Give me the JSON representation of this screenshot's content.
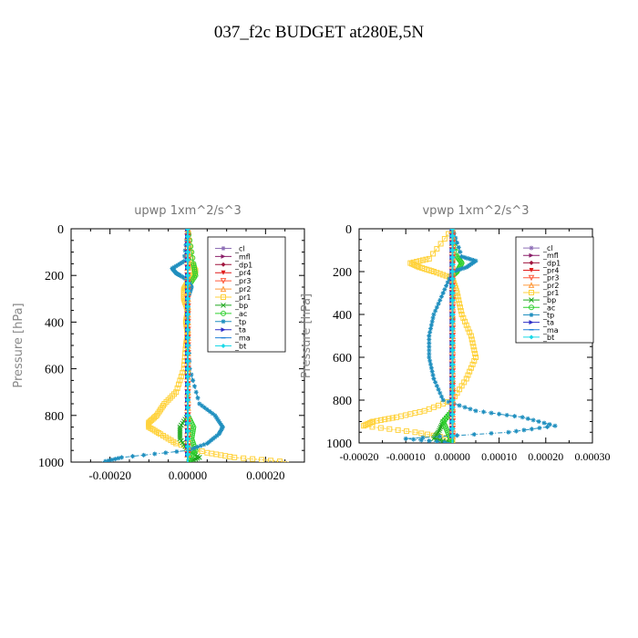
{
  "figure_title": "037_f2c  BUDGET at280E,5N",
  "legend_items": [
    {
      "label": "_cl",
      "color": "#8e6fb6",
      "marker": "star"
    },
    {
      "label": "_mfl",
      "color": "#8b1f6a",
      "marker": "tri-right"
    },
    {
      "label": "_dp1",
      "color": "#a0153e",
      "marker": "diamond"
    },
    {
      "label": "_pr4",
      "color": "#e01b1b",
      "marker": "tri-down"
    },
    {
      "label": "_pr3",
      "color": "#ff5a3c",
      "marker": "tri-down-open"
    },
    {
      "label": "_pr2",
      "color": "#ff9a3c",
      "marker": "tri-open"
    },
    {
      "label": "_pr1",
      "color": "#ffd23c",
      "marker": "square-open"
    },
    {
      "label": "_bp",
      "color": "#1fa81f",
      "marker": "x"
    },
    {
      "label": "_ac",
      "color": "#2fd12f",
      "marker": "circle-open"
    },
    {
      "label": "_tp",
      "color": "#1f8fbf",
      "marker": "star"
    },
    {
      "label": "_ta",
      "color": "#2f2fc8",
      "marker": "tri-right"
    },
    {
      "label": "_ma",
      "color": "#1f7fd8",
      "marker": "dash"
    },
    {
      "label": "_bt",
      "color": "#19d9e8",
      "marker": "diamond"
    }
  ],
  "chart_data": [
    {
      "type": "line",
      "title": "upwp   1xm^2/s^3",
      "xlabel": "",
      "ylabel": "Pressure [hPa]",
      "xlim": [
        -0.0003,
        0.0003
      ],
      "ylim": [
        0,
        1000
      ],
      "y_inverted": true,
      "xticks": [
        -0.0002,
        0.0,
        0.0002
      ],
      "xtick_labels": [
        "-0.00020",
        "0.00000",
        "0.00020"
      ],
      "yticks": [
        0,
        200,
        400,
        600,
        800,
        1000
      ],
      "ytick_labels": [
        "0",
        "200",
        "400",
        "600",
        "800",
        "1000"
      ],
      "legend_position": "top-right",
      "series": [
        {
          "name": "_cl",
          "y": [
            0,
            200,
            400,
            600,
            800,
            1000
          ],
          "x": [
            0,
            0,
            0,
            0,
            0,
            0
          ]
        },
        {
          "name": "_mfl",
          "y": [
            0,
            200,
            400,
            600,
            800,
            1000
          ],
          "x": [
            0,
            0,
            0,
            0,
            0,
            0
          ]
        },
        {
          "name": "_dp1",
          "y": [
            0,
            200,
            400,
            600,
            800,
            1000
          ],
          "x": [
            0,
            0,
            0,
            0,
            0,
            0
          ]
        },
        {
          "name": "_pr4",
          "y": [
            0,
            200,
            400,
            600,
            800,
            1000
          ],
          "x": [
            0,
            0,
            0,
            0,
            0,
            0
          ]
        },
        {
          "name": "_pr3",
          "y": [
            0,
            200,
            400,
            600,
            800,
            1000
          ],
          "x": [
            0,
            0,
            0,
            0,
            0,
            0
          ]
        },
        {
          "name": "_pr2",
          "y": [
            0,
            200,
            400,
            600,
            800,
            1000
          ],
          "x": [
            0,
            0,
            0,
            0,
            0,
            0
          ]
        },
        {
          "name": "_pr1",
          "y": [
            0,
            150,
            180,
            200,
            230,
            260,
            300,
            350,
            400,
            450,
            500,
            600,
            700,
            750,
            800,
            830,
            850,
            880,
            920,
            960,
            980,
            1000
          ],
          "x": [
            0,
            1e-05,
            2e-05,
            1.5e-05,
            0,
            -1e-05,
            -1e-05,
            0,
            -5e-06,
            0,
            -5e-06,
            -1e-05,
            -3e-05,
            -6e-05,
            -8e-05,
            -0.0001,
            -0.0001,
            -7e-05,
            -3e-05,
            5e-05,
            0.00012,
            0.00026
          ]
        },
        {
          "name": "_bp",
          "y": [
            0,
            800,
            850,
            900,
            950,
            980,
            1000
          ],
          "x": [
            0,
            0,
            -2e-05,
            -2e-05,
            0,
            3e-05,
            0
          ]
        },
        {
          "name": "_ac",
          "y": [
            0,
            150,
            200,
            250,
            800,
            850,
            900,
            950,
            1000
          ],
          "x": [
            0,
            1.5e-05,
            2e-05,
            0,
            0,
            1.5e-05,
            1e-05,
            2e-05,
            0
          ]
        },
        {
          "name": "_tp",
          "y": [
            0,
            140,
            170,
            190,
            200,
            220,
            250,
            300,
            400,
            600,
            750,
            800,
            850,
            880,
            920,
            950,
            980,
            1000
          ],
          "x": [
            0,
            -1e-05,
            -4e-05,
            -3e-05,
            -2e-05,
            0,
            1e-05,
            0,
            0,
            5e-06,
            3e-05,
            7e-05,
            9e-05,
            8e-05,
            5e-05,
            0,
            -0.00017,
            -0.00022
          ]
        },
        {
          "name": "_ta",
          "y": [
            0,
            200,
            400,
            600,
            800,
            1000
          ],
          "x": [
            0,
            0,
            0,
            0,
            0,
            0
          ]
        },
        {
          "name": "_ma",
          "y": [
            0,
            200,
            400,
            600,
            800,
            1000
          ],
          "x": [
            0,
            0,
            0,
            0,
            0,
            0
          ]
        },
        {
          "name": "_bt",
          "y": [
            0,
            200,
            400,
            600,
            800,
            1000
          ],
          "x": [
            0,
            0,
            0,
            0,
            0,
            0
          ]
        }
      ]
    },
    {
      "type": "line",
      "title": "vpwp   1xm^2/s^3",
      "xlabel": "",
      "ylabel": "Pressure [hPa]",
      "xlim": [
        -0.0002,
        0.0003
      ],
      "ylim": [
        0,
        1000
      ],
      "y_inverted": true,
      "xticks": [
        -0.0002,
        -0.0001,
        0.0,
        0.0001,
        0.0002,
        0.0003
      ],
      "xtick_labels": [
        "-0.00020",
        "-0.00010",
        "0.00000",
        "0.00010",
        "0.00020",
        "0.00030"
      ],
      "yticks": [
        0,
        200,
        400,
        600,
        800,
        1000
      ],
      "ytick_labels": [
        "0",
        "200",
        "400",
        "600",
        "800",
        "1000"
      ],
      "legend_position": "top-right",
      "series": [
        {
          "name": "_cl",
          "y": [
            0,
            200,
            400,
            600,
            800,
            1000
          ],
          "x": [
            0,
            0,
            0,
            0,
            0,
            0
          ]
        },
        {
          "name": "_mfl",
          "y": [
            0,
            200,
            400,
            600,
            800,
            1000
          ],
          "x": [
            0,
            0,
            0,
            0,
            0,
            0
          ]
        },
        {
          "name": "_dp1",
          "y": [
            0,
            200,
            400,
            600,
            800,
            1000
          ],
          "x": [
            0,
            0,
            0,
            0,
            0,
            0
          ]
        },
        {
          "name": "_pr4",
          "y": [
            0,
            200,
            400,
            600,
            800,
            1000
          ],
          "x": [
            0,
            0,
            0,
            0,
            0,
            0
          ]
        },
        {
          "name": "_pr3",
          "y": [
            0,
            200,
            400,
            600,
            800,
            1000
          ],
          "x": [
            0,
            0,
            0,
            0,
            0,
            0
          ]
        },
        {
          "name": "_pr2",
          "y": [
            0,
            200,
            400,
            600,
            800,
            1000
          ],
          "x": [
            0,
            0,
            0,
            0,
            0,
            0
          ]
        },
        {
          "name": "_pr1",
          "y": [
            0,
            140,
            160,
            180,
            200,
            230,
            300,
            400,
            500,
            600,
            700,
            800,
            850,
            880,
            900,
            920,
            950,
            980,
            1000
          ],
          "x": [
            0,
            -5e-05,
            -9e-05,
            -7e-05,
            -4e-05,
            0,
            1e-05,
            2e-05,
            4e-05,
            5e-05,
            3e-05,
            0,
            -6e-05,
            -0.00012,
            -0.00017,
            -0.00019,
            -8e-05,
            0,
            0
          ]
        },
        {
          "name": "_bp",
          "y": [
            0,
            850,
            900,
            950,
            980,
            1000
          ],
          "x": [
            0,
            0,
            -2e-05,
            -3e-05,
            -4e-05,
            0
          ]
        },
        {
          "name": "_ac",
          "y": [
            0,
            130,
            160,
            200,
            220,
            850,
            900,
            950,
            1000
          ],
          "x": [
            0,
            1e-05,
            2e-05,
            1e-05,
            0,
            0,
            -2e-05,
            -1e-05,
            0
          ]
        },
        {
          "name": "_tp",
          "y": [
            0,
            130,
            150,
            180,
            200,
            300,
            400,
            500,
            600,
            700,
            800,
            850,
            880,
            920,
            950,
            980,
            1000
          ],
          "x": [
            0,
            2e-05,
            5e-05,
            3e-05,
            0,
            -2e-05,
            -4e-05,
            -5e-05,
            -5e-05,
            -4e-05,
            -2e-05,
            5e-05,
            0.00015,
            0.00022,
            0.00012,
            -0.0001,
            0
          ]
        },
        {
          "name": "_ta",
          "y": [
            0,
            200,
            400,
            600,
            800,
            1000
          ],
          "x": [
            0,
            0,
            0,
            0,
            0,
            0
          ]
        },
        {
          "name": "_ma",
          "y": [
            0,
            200,
            400,
            600,
            800,
            1000
          ],
          "x": [
            0,
            0,
            0,
            0,
            0,
            0
          ]
        },
        {
          "name": "_bt",
          "y": [
            0,
            200,
            400,
            600,
            800,
            1000
          ],
          "x": [
            0,
            0,
            0,
            0,
            0,
            0
          ]
        }
      ]
    }
  ]
}
